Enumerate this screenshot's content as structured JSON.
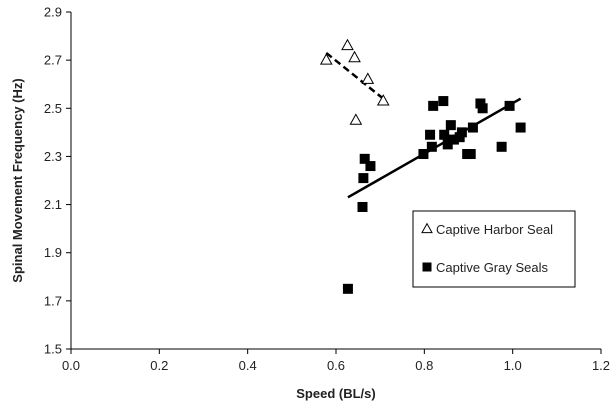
{
  "chart_data": {
    "type": "scatter",
    "title": "",
    "xlabel": "Speed (BL/s)",
    "ylabel": "Spinal Movement Frequency (Hz)",
    "xlim": [
      0.0,
      1.2
    ],
    "ylim": [
      1.5,
      2.9
    ],
    "x_ticks": [
      "0.0",
      "0.2",
      "0.4",
      "0.6",
      "0.8",
      "1.0",
      "1.2"
    ],
    "y_ticks": [
      "1.5",
      "1.7",
      "1.9",
      "2.1",
      "2.3",
      "2.5",
      "2.7",
      "2.9"
    ],
    "grid": false,
    "legend_position": "lower-right",
    "series": [
      {
        "name": "Captive Harbor Seal",
        "marker": "open-triangle",
        "color": "#000000",
        "points": [
          {
            "x": 0.578,
            "y": 2.7
          },
          {
            "x": 0.626,
            "y": 2.76
          },
          {
            "x": 0.642,
            "y": 2.71
          },
          {
            "x": 0.672,
            "y": 2.62
          },
          {
            "x": 0.707,
            "y": 2.53
          },
          {
            "x": 0.645,
            "y": 2.45
          }
        ],
        "trendline": {
          "style": "dashed",
          "x": [
            0.578,
            0.707
          ],
          "y": [
            2.73,
            2.54
          ]
        }
      },
      {
        "name": "Captive Gray Seals",
        "marker": "filled-square",
        "color": "#000000",
        "points": [
          {
            "x": 0.627,
            "y": 1.75
          },
          {
            "x": 0.66,
            "y": 2.09
          },
          {
            "x": 0.662,
            "y": 2.21
          },
          {
            "x": 0.665,
            "y": 2.29
          },
          {
            "x": 0.678,
            "y": 2.26
          },
          {
            "x": 0.798,
            "y": 2.31
          },
          {
            "x": 0.813,
            "y": 2.39
          },
          {
            "x": 0.817,
            "y": 2.34
          },
          {
            "x": 0.82,
            "y": 2.51
          },
          {
            "x": 0.843,
            "y": 2.53
          },
          {
            "x": 0.845,
            "y": 2.39
          },
          {
            "x": 0.853,
            "y": 2.35
          },
          {
            "x": 0.86,
            "y": 2.43
          },
          {
            "x": 0.867,
            "y": 2.37
          },
          {
            "x": 0.88,
            "y": 2.38
          },
          {
            "x": 0.885,
            "y": 2.4
          },
          {
            "x": 0.897,
            "y": 2.31
          },
          {
            "x": 0.905,
            "y": 2.31
          },
          {
            "x": 0.91,
            "y": 2.42
          },
          {
            "x": 0.927,
            "y": 2.52
          },
          {
            "x": 0.932,
            "y": 2.5
          },
          {
            "x": 0.975,
            "y": 2.34
          },
          {
            "x": 0.993,
            "y": 2.51
          },
          {
            "x": 1.018,
            "y": 2.42
          }
        ],
        "trendline": {
          "style": "solid",
          "x": [
            0.627,
            1.018
          ],
          "y": [
            2.13,
            2.54
          ]
        }
      }
    ]
  }
}
